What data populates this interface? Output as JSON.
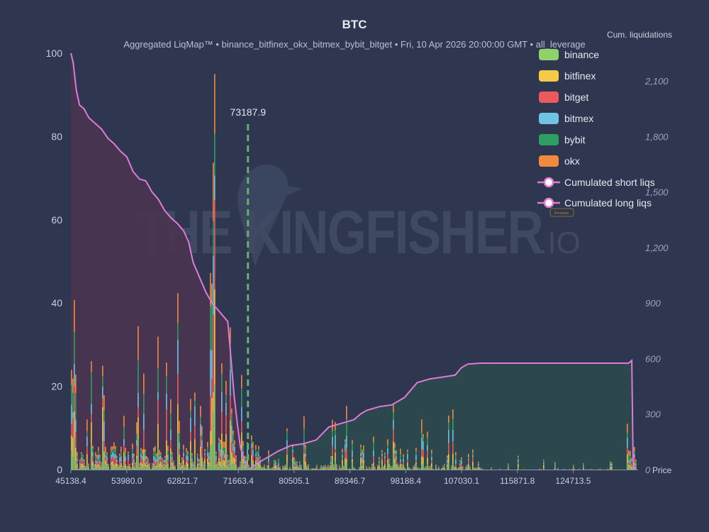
{
  "chart_data": {
    "type": "bar",
    "title": "BTC",
    "subtitle": "Aggregated LiqMap™  •  binance_bitfinex_okx_bitmex_bybit_bitget  •  Fri, 10 Apr 2026 20:00:00 GMT  •  all_leverage",
    "watermark": "THE KINGFISHER",
    "watermark_suffix": ".IO",
    "watermark_badge": "Premium",
    "xlabel": "Price",
    "ylabel_right": "Cum. liquidations",
    "xlim": [
      45138.4,
      135000
    ],
    "ylim": [
      0,
      100
    ],
    "ylim_right": [
      0,
      2250
    ],
    "yticks": [
      0,
      20,
      40,
      60,
      80,
      100
    ],
    "yticks_right": [
      "0",
      "300",
      "600",
      "900",
      "1,200",
      "1,500",
      "1,800",
      "2,100"
    ],
    "yticks_right_values": [
      0,
      300,
      600,
      900,
      1200,
      1500,
      1800,
      2100
    ],
    "xticks": [
      45138.4,
      53980.0,
      62821.7,
      71663.4,
      80505.1,
      89346.7,
      98188.4,
      107030.1,
      115871.8,
      124713.5
    ],
    "xtick_labels": [
      "45138.4",
      "53980.0",
      "62821.7",
      "71663.4",
      "80505.1",
      "89346.7",
      "98188.4",
      "107030.1",
      "115871.8",
      "124713.5"
    ],
    "current_price": 73187.9,
    "current_price_label": "73187.9",
    "series": [
      {
        "name": "binance",
        "color": "#8fd16a"
      },
      {
        "name": "bitfinex",
        "color": "#f7c948"
      },
      {
        "name": "bitget",
        "color": "#ea5a5f"
      },
      {
        "name": "bitmex",
        "color": "#6fc3e3"
      },
      {
        "name": "bybit",
        "color": "#2e9e63"
      },
      {
        "name": "okx",
        "color": "#f08a3c"
      }
    ],
    "cumulative_series": [
      {
        "name": "Cumulated short liqs",
        "color": "#e07ad6",
        "fill": "#4a3450",
        "points": [
          [
            45138.4,
            2250
          ],
          [
            45500,
            2200
          ],
          [
            46000,
            2050
          ],
          [
            46500,
            1970
          ],
          [
            47200,
            1950
          ],
          [
            48000,
            1900
          ],
          [
            49000,
            1870
          ],
          [
            50000,
            1840
          ],
          [
            51000,
            1790
          ],
          [
            52000,
            1760
          ],
          [
            53000,
            1720
          ],
          [
            54000,
            1690
          ],
          [
            55000,
            1610
          ],
          [
            56000,
            1570
          ],
          [
            57000,
            1560
          ],
          [
            58000,
            1500
          ],
          [
            59000,
            1460
          ],
          [
            60000,
            1400
          ],
          [
            61000,
            1360
          ],
          [
            62000,
            1330
          ],
          [
            63000,
            1290
          ],
          [
            63800,
            1230
          ],
          [
            64500,
            1120
          ],
          [
            65500,
            1040
          ],
          [
            66500,
            960
          ],
          [
            67500,
            900
          ],
          [
            68500,
            860
          ],
          [
            69500,
            820
          ],
          [
            70000,
            800
          ],
          [
            70500,
            600
          ],
          [
            71000,
            400
          ],
          [
            71500,
            250
          ],
          [
            72000,
            120
          ],
          [
            72500,
            60
          ],
          [
            73187.9,
            0
          ]
        ]
      },
      {
        "name": "Cumulated long liqs",
        "color": "#e07ad6",
        "fill": "#2b4a4c",
        "points": [
          [
            73187.9,
            0
          ],
          [
            74500,
            30
          ],
          [
            76000,
            60
          ],
          [
            78000,
            100
          ],
          [
            80000,
            130
          ],
          [
            82000,
            140
          ],
          [
            84000,
            160
          ],
          [
            86000,
            230
          ],
          [
            88000,
            250
          ],
          [
            90000,
            270
          ],
          [
            91000,
            300
          ],
          [
            92000,
            320
          ],
          [
            94000,
            340
          ],
          [
            96000,
            350
          ],
          [
            98000,
            390
          ],
          [
            99000,
            430
          ],
          [
            100000,
            470
          ],
          [
            102000,
            490
          ],
          [
            104000,
            500
          ],
          [
            106000,
            510
          ],
          [
            107000,
            550
          ],
          [
            108000,
            570
          ],
          [
            110000,
            575
          ],
          [
            113000,
            575
          ],
          [
            118000,
            575
          ],
          [
            124000,
            575
          ],
          [
            133500,
            575
          ],
          [
            134000,
            590
          ],
          [
            134200,
            60
          ],
          [
            134300,
            0
          ]
        ]
      }
    ]
  }
}
